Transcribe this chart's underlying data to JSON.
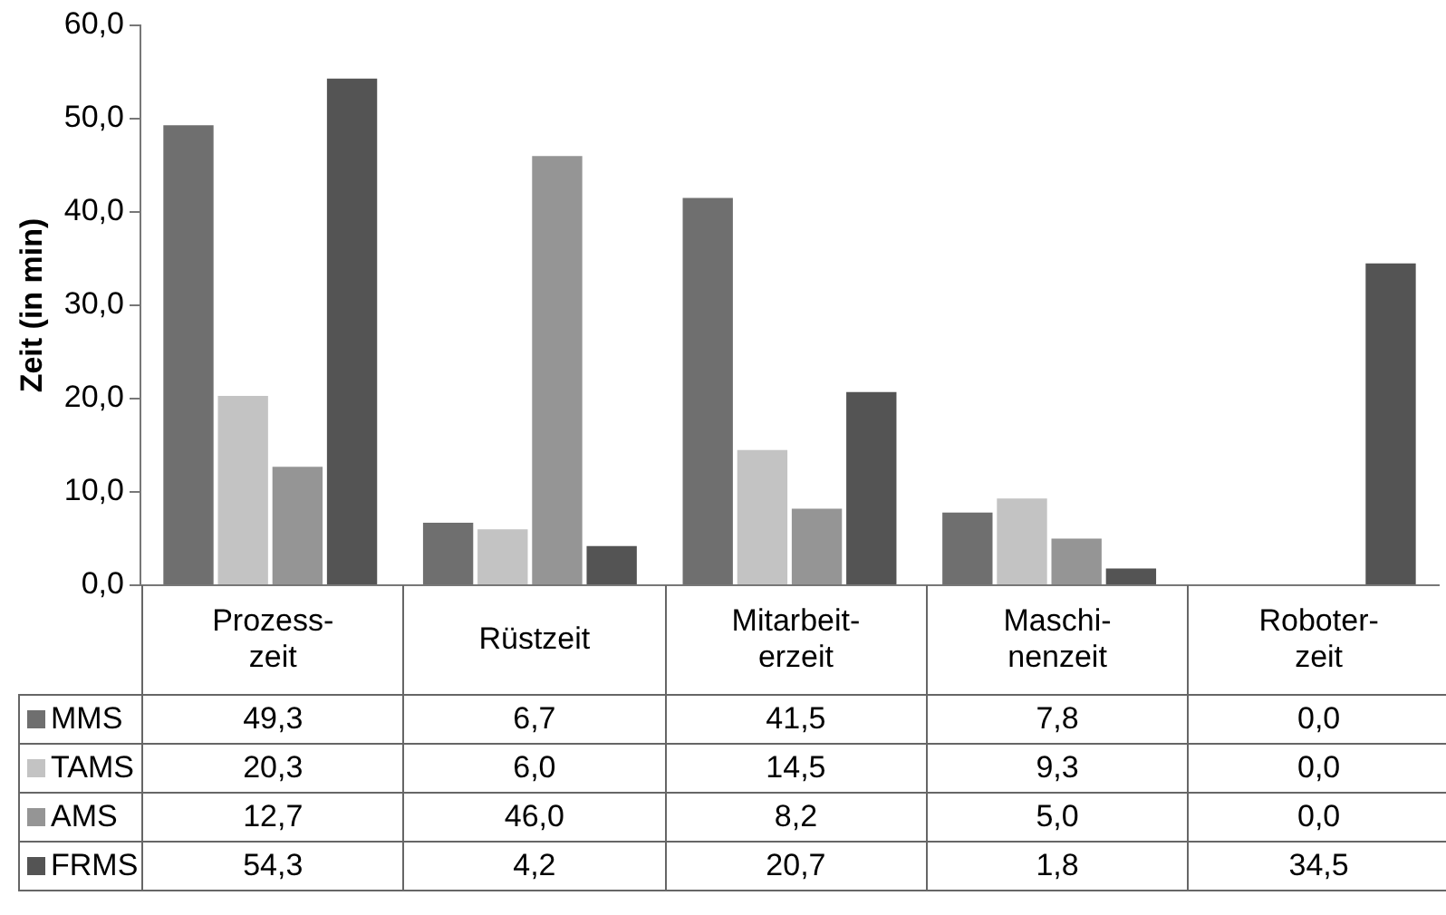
{
  "chart_data": {
    "type": "bar",
    "ylabel": "Zeit (in min)",
    "categories": [
      "Prozess-\nzeit",
      "Rüstzeit",
      "Mitarbeit-\nerzeit",
      "Maschi-\nnenzeit",
      "Roboter-\nzeit"
    ],
    "series": [
      {
        "name": "MMS",
        "color": "#6f6f6f",
        "values": [
          49.3,
          6.7,
          41.5,
          7.8,
          0.0
        ],
        "value_labels": [
          "49,3",
          "6,7",
          "41,5",
          "7,8",
          "0,0"
        ]
      },
      {
        "name": "TAMS",
        "color": "#c3c3c3",
        "values": [
          20.3,
          6.0,
          14.5,
          9.3,
          0.0
        ],
        "value_labels": [
          "20,3",
          "6,0",
          "14,5",
          "9,3",
          "0,0"
        ]
      },
      {
        "name": "AMS",
        "color": "#959595",
        "values": [
          12.7,
          46.0,
          8.2,
          5.0,
          0.0
        ],
        "value_labels": [
          "12,7",
          "46,0",
          "8,2",
          "5,0",
          "0,0"
        ]
      },
      {
        "name": "FRMS",
        "color": "#545454",
        "values": [
          54.3,
          4.2,
          20.7,
          1.8,
          34.5
        ],
        "value_labels": [
          "54,3",
          "4,2",
          "20,7",
          "1,8",
          "34,5"
        ]
      }
    ],
    "ylim": [
      0,
      60
    ],
    "yticks": [
      {
        "value": 0,
        "label": "0,0"
      },
      {
        "value": 10,
        "label": "10,0"
      },
      {
        "value": 20,
        "label": "20,0"
      },
      {
        "value": 30,
        "label": "30,0"
      },
      {
        "value": 40,
        "label": "40,0"
      },
      {
        "value": 50,
        "label": "50,0"
      },
      {
        "value": 60,
        "label": "60,0"
      }
    ],
    "grid": false,
    "legend": "bottom left"
  }
}
